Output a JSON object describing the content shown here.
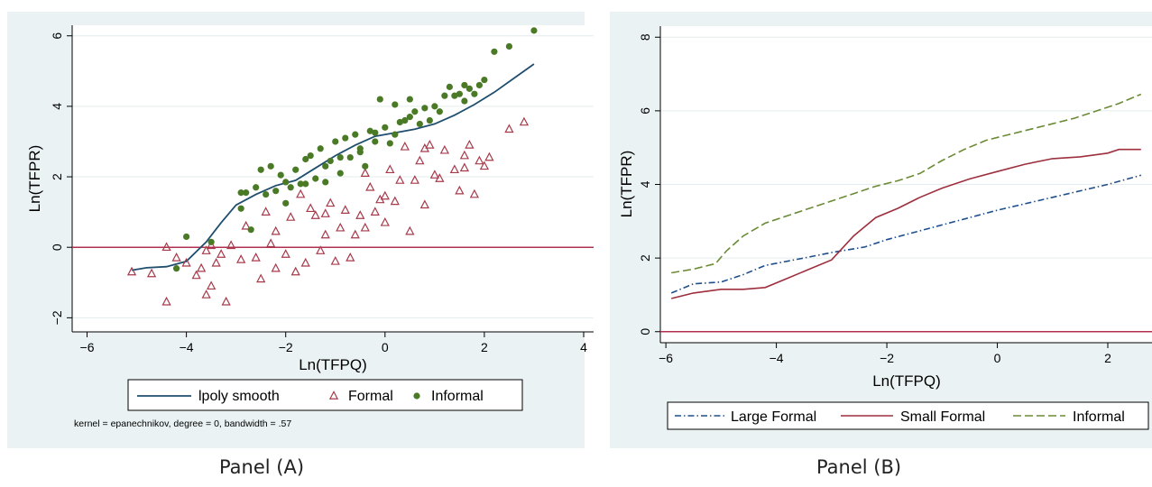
{
  "colors": {
    "figure_bg": "#eaf2f3",
    "plot_bg": "#ffffff",
    "grid": "#e3ecee",
    "refline": "#b03050",
    "smooth": "#1f4e6e",
    "formal": "#a63a4a",
    "informal": "#4a7a26",
    "large_formal": "#1f4e8c",
    "small_formal": "#9e2f3e",
    "informal_line": "#6b8a36"
  },
  "captions": {
    "a": "Panel (A)",
    "b": "Panel (B)"
  },
  "chart_data": [
    {
      "type": "scatter",
      "xlabel": "Ln(TFPQ)",
      "ylabel": "Ln(TFPR)",
      "xlim": [
        -6.3,
        4.2
      ],
      "ylim": [
        -2.4,
        6.3
      ],
      "xticks": [
        -6,
        -4,
        -2,
        0,
        2,
        4
      ],
      "yticks": [
        -2,
        0,
        2,
        4,
        6
      ],
      "grid": "horizontal",
      "reference_line_y": 0,
      "legend_position": "bottom",
      "note": "kernel = epanechnikov, degree = 0, bandwidth = .57",
      "series": [
        {
          "name": "lpoly smooth",
          "kind": "line",
          "x": [
            -5.1,
            -4.8,
            -4.4,
            -4.0,
            -3.6,
            -3.3,
            -3.0,
            -2.6,
            -2.2,
            -1.8,
            -1.4,
            -1.0,
            -0.6,
            -0.2,
            0.2,
            0.6,
            1.0,
            1.4,
            1.8,
            2.2,
            2.6,
            3.0
          ],
          "y": [
            -0.65,
            -0.58,
            -0.55,
            -0.4,
            0.15,
            0.7,
            1.2,
            1.5,
            1.75,
            1.9,
            2.25,
            2.6,
            2.9,
            3.15,
            3.25,
            3.35,
            3.5,
            3.75,
            4.05,
            4.4,
            4.8,
            5.2
          ]
        },
        {
          "name": "Formal",
          "kind": "triangle",
          "x": [
            -5.1,
            -4.7,
            -4.4,
            -4.4,
            -4.2,
            -4.0,
            -3.8,
            -3.7,
            -3.6,
            -3.5,
            -3.5,
            -3.4,
            -3.3,
            -3.2,
            -3.1,
            -2.9,
            -2.8,
            -2.6,
            -2.5,
            -2.4,
            -2.3,
            -2.2,
            -2.2,
            -2.0,
            -1.9,
            -1.8,
            -1.7,
            -1.6,
            -1.5,
            -1.4,
            -1.3,
            -1.2,
            -1.1,
            -1.0,
            -0.9,
            -0.8,
            -0.7,
            -0.6,
            -0.5,
            -0.4,
            -0.3,
            -0.2,
            -0.1,
            0.0,
            0.0,
            0.1,
            0.2,
            0.3,
            0.4,
            0.5,
            0.6,
            0.7,
            0.8,
            0.9,
            1.0,
            1.1,
            1.2,
            1.4,
            1.5,
            1.6,
            1.7,
            1.8,
            1.9,
            2.0,
            2.1,
            2.5,
            2.8,
            -3.6,
            -1.2,
            -0.4,
            0.8,
            1.6
          ],
          "y": [
            -0.7,
            -0.75,
            -1.55,
            0.0,
            -0.3,
            -0.45,
            -0.8,
            -0.6,
            -1.35,
            -1.1,
            0.05,
            -0.45,
            -0.2,
            -1.55,
            0.05,
            -0.35,
            0.6,
            -0.3,
            -0.9,
            1.0,
            0.1,
            -0.6,
            0.45,
            -0.2,
            0.85,
            -0.7,
            1.5,
            -0.45,
            1.1,
            0.9,
            -0.1,
            0.35,
            1.25,
            -0.4,
            0.55,
            1.05,
            -0.3,
            0.35,
            0.9,
            0.55,
            1.7,
            1.0,
            1.35,
            0.7,
            1.45,
            2.2,
            1.3,
            1.9,
            2.85,
            0.45,
            1.9,
            2.45,
            1.2,
            2.9,
            2.05,
            1.95,
            2.75,
            2.2,
            1.6,
            2.25,
            2.9,
            1.5,
            2.45,
            2.3,
            2.55,
            3.35,
            3.55,
            -0.1,
            0.95,
            2.1,
            2.8,
            2.6
          ]
        },
        {
          "name": "Informal",
          "kind": "dot",
          "x": [
            -4.0,
            -4.2,
            -3.5,
            -2.9,
            -2.8,
            -2.7,
            -2.6,
            -2.5,
            -2.4,
            -2.3,
            -2.2,
            -2.1,
            -2.0,
            -1.9,
            -1.8,
            -1.7,
            -1.6,
            -1.5,
            -1.4,
            -1.3,
            -1.2,
            -1.1,
            -1.0,
            -0.9,
            -0.8,
            -0.7,
            -0.6,
            -0.5,
            -0.4,
            -0.3,
            -0.2,
            -0.1,
            0.0,
            0.1,
            0.2,
            0.3,
            0.4,
            0.5,
            0.6,
            0.7,
            0.8,
            0.9,
            1.0,
            1.2,
            1.3,
            1.4,
            1.5,
            1.6,
            1.7,
            1.8,
            1.9,
            2.0,
            2.2,
            2.5,
            3.0,
            -2.9,
            -2.0,
            -1.6,
            -1.2,
            -0.9,
            -0.5,
            -0.2,
            0.2,
            0.5,
            1.1,
            1.6
          ],
          "y": [
            0.3,
            -0.6,
            0.15,
            1.1,
            1.55,
            0.5,
            1.7,
            2.2,
            1.5,
            2.3,
            1.6,
            2.05,
            1.85,
            1.7,
            2.2,
            1.8,
            2.5,
            2.6,
            1.95,
            2.8,
            2.3,
            2.45,
            3.0,
            2.1,
            3.1,
            2.55,
            3.2,
            2.7,
            2.3,
            3.3,
            3.0,
            4.2,
            3.4,
            2.95,
            4.05,
            3.55,
            3.6,
            4.2,
            3.85,
            3.5,
            3.95,
            3.6,
            4.0,
            4.3,
            4.55,
            4.3,
            4.35,
            4.6,
            4.5,
            4.35,
            4.6,
            4.75,
            5.55,
            5.7,
            6.15,
            1.55,
            1.25,
            1.8,
            1.85,
            2.55,
            2.8,
            3.25,
            3.2,
            3.7,
            3.85,
            4.15
          ]
        }
      ]
    },
    {
      "type": "line",
      "xlabel": "Ln(TFPQ)",
      "ylabel": "Ln(TFPR)",
      "xlim": [
        -6.1,
        2.8
      ],
      "ylim": [
        -0.3,
        8.3
      ],
      "xticks": [
        -6,
        -4,
        -2,
        0,
        2
      ],
      "yticks": [
        0,
        2,
        4,
        6,
        8
      ],
      "grid": "horizontal",
      "reference_line_y": 0,
      "legend_position": "bottom",
      "series": [
        {
          "name": "Large Formal",
          "dash": "dashdot",
          "x": [
            -5.9,
            -5.5,
            -5.0,
            -4.6,
            -4.2,
            -3.5,
            -3.0,
            -2.4,
            -2.0,
            -1.0,
            0.0,
            1.0,
            2.0,
            2.6
          ],
          "y": [
            1.05,
            1.3,
            1.35,
            1.55,
            1.8,
            2.0,
            2.15,
            2.3,
            2.5,
            2.9,
            3.3,
            3.65,
            4.0,
            4.25
          ]
        },
        {
          "name": "Small Formal",
          "dash": "solid",
          "x": [
            -5.9,
            -5.5,
            -5.0,
            -4.6,
            -4.2,
            -3.8,
            -3.4,
            -3.0,
            -2.6,
            -2.2,
            -1.8,
            -1.4,
            -1.0,
            -0.5,
            0.0,
            0.5,
            1.0,
            1.5,
            2.0,
            2.2,
            2.6
          ],
          "y": [
            0.9,
            1.05,
            1.15,
            1.15,
            1.2,
            1.45,
            1.7,
            1.95,
            2.6,
            3.1,
            3.35,
            3.65,
            3.9,
            4.15,
            4.35,
            4.55,
            4.7,
            4.75,
            4.85,
            4.95,
            4.95
          ]
        },
        {
          "name": "Informal",
          "dash": "longdash",
          "x": [
            -5.9,
            -5.5,
            -5.1,
            -4.9,
            -4.6,
            -4.2,
            -3.8,
            -3.4,
            -3.0,
            -2.6,
            -2.2,
            -1.8,
            -1.4,
            -1.0,
            -0.6,
            -0.2,
            0.2,
            0.6,
            1.0,
            1.4,
            1.8,
            2.2,
            2.6
          ],
          "y": [
            1.6,
            1.7,
            1.85,
            2.2,
            2.6,
            2.95,
            3.15,
            3.35,
            3.55,
            3.75,
            3.95,
            4.1,
            4.3,
            4.65,
            4.95,
            5.2,
            5.35,
            5.5,
            5.65,
            5.8,
            6.0,
            6.2,
            6.45
          ]
        }
      ]
    }
  ]
}
